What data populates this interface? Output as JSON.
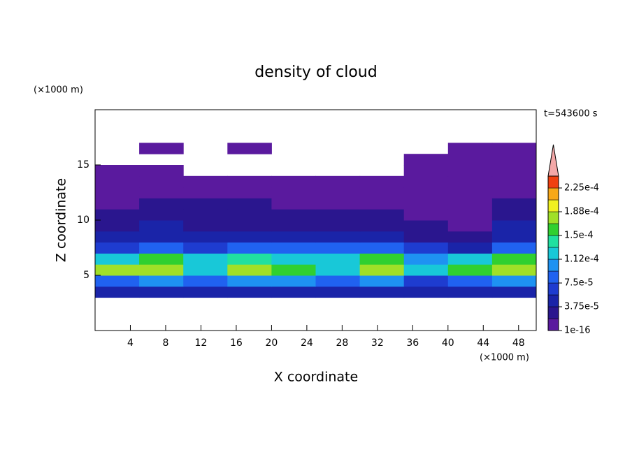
{
  "chart_data": {
    "type": "contour",
    "title": "density of cloud",
    "x_label": "X coordinate",
    "y_label": "Z coordinate",
    "x_unit": "(×1000 m)",
    "y_unit": "(×1000 m)",
    "time_label": "t=543600 s",
    "xlim": [
      0,
      50
    ],
    "ylim": [
      0,
      20
    ],
    "xticks": [
      4,
      8,
      12,
      16,
      20,
      24,
      28,
      32,
      36,
      40,
      44,
      48
    ],
    "yticks": [
      5,
      10,
      15
    ],
    "x": [
      2.5,
      7.5,
      12.5,
      17.5,
      22.5,
      27.5,
      32.5,
      37.5,
      42.5,
      47.5
    ],
    "z": [
      3.5,
      4.5,
      5.5,
      6.5,
      7.5,
      8.5,
      9.5,
      10.5,
      11.5,
      12.5,
      13.5,
      14.5,
      15.5,
      16.5
    ],
    "values": [
      [
        4e-05,
        4e-05,
        4e-05,
        4e-05,
        4e-05,
        4e-05,
        4e-05,
        4e-05,
        4e-05,
        4e-05
      ],
      [
        9e-05,
        0.0001,
        9e-05,
        0.0001,
        0.0001,
        8e-05,
        0.0001,
        7e-05,
        9e-05,
        0.0001
      ],
      [
        0.00017,
        0.00017,
        0.00013,
        0.00018,
        0.00015,
        0.00013,
        0.00017,
        0.00012,
        0.00016,
        0.00018
      ],
      [
        0.00013,
        0.00015,
        0.00012,
        0.00014,
        0.00013,
        0.00012,
        0.00015,
        0.0001,
        0.00012,
        0.00015
      ],
      [
        7e-05,
        8e-05,
        7e-05,
        8e-05,
        8e-05,
        9e-05,
        8e-05,
        6e-05,
        5e-05,
        8e-05
      ],
      [
        5e-05,
        5e-05,
        4e-05,
        5e-05,
        4e-05,
        4e-05,
        4e-05,
        3e-05,
        2e-05,
        5e-05
      ],
      [
        3e-05,
        4e-05,
        3e-05,
        3e-05,
        3e-05,
        3e-05,
        3e-05,
        2e-05,
        1e-06,
        4e-05
      ],
      [
        2e-05,
        3e-05,
        2e-05,
        2e-05,
        2e-05,
        2e-05,
        2e-05,
        1e-06,
        1e-06,
        2e-05
      ],
      [
        1e-06,
        2e-05,
        2e-05,
        2e-05,
        1e-06,
        1e-06,
        1e-06,
        1e-06,
        1e-06,
        2e-05
      ],
      [
        1e-06,
        1e-06,
        1e-06,
        1e-06,
        1e-06,
        1e-06,
        1e-06,
        1e-06,
        1e-06,
        1e-06
      ],
      [
        1e-06,
        1e-06,
        1e-06,
        1e-06,
        1e-06,
        1e-06,
        1e-06,
        1e-06,
        1e-06,
        1e-06
      ],
      [
        1e-06,
        1e-06,
        null,
        null,
        null,
        null,
        null,
        1e-06,
        1e-06,
        1e-06
      ],
      [
        null,
        null,
        null,
        null,
        null,
        null,
        null,
        1e-06,
        1e-06,
        1e-06
      ],
      [
        null,
        1e-06,
        null,
        1e-06,
        null,
        null,
        null,
        null,
        1e-06,
        1e-06
      ]
    ],
    "levels": [
      1e-16,
      1.875e-05,
      3.75e-05,
      5.625e-05,
      7.5e-05,
      9.375e-05,
      0.0001125,
      0.00013125,
      0.00015,
      0.00016875,
      0.0001875,
      0.00020625,
      0.000225
    ],
    "colors": [
      "#5a1a9e",
      "#2a168e",
      "#1a24a8",
      "#1e3cd0",
      "#2062f0",
      "#1e92f2",
      "#18c8d8",
      "#20e0a0",
      "#30d030",
      "#a0e028",
      "#f0f020",
      "#f8a818",
      "#f04010"
    ],
    "clim": [
      1e-16,
      0.00024375
    ],
    "extend_color": "#f4a8a8",
    "cticks": [
      {
        "value": 1e-16,
        "label": "1e-16"
      },
      {
        "value": 3.75e-05,
        "label": "3.75e-5"
      },
      {
        "value": 7.5e-05,
        "label": "7.5e-5"
      },
      {
        "value": 0.0001125,
        "label": "1.12e-4"
      },
      {
        "value": 0.00015,
        "label": "1.5e-4"
      },
      {
        "value": 0.0001875,
        "label": "1.88e-4"
      },
      {
        "value": 0.000225,
        "label": "2.25e-4"
      }
    ]
  }
}
